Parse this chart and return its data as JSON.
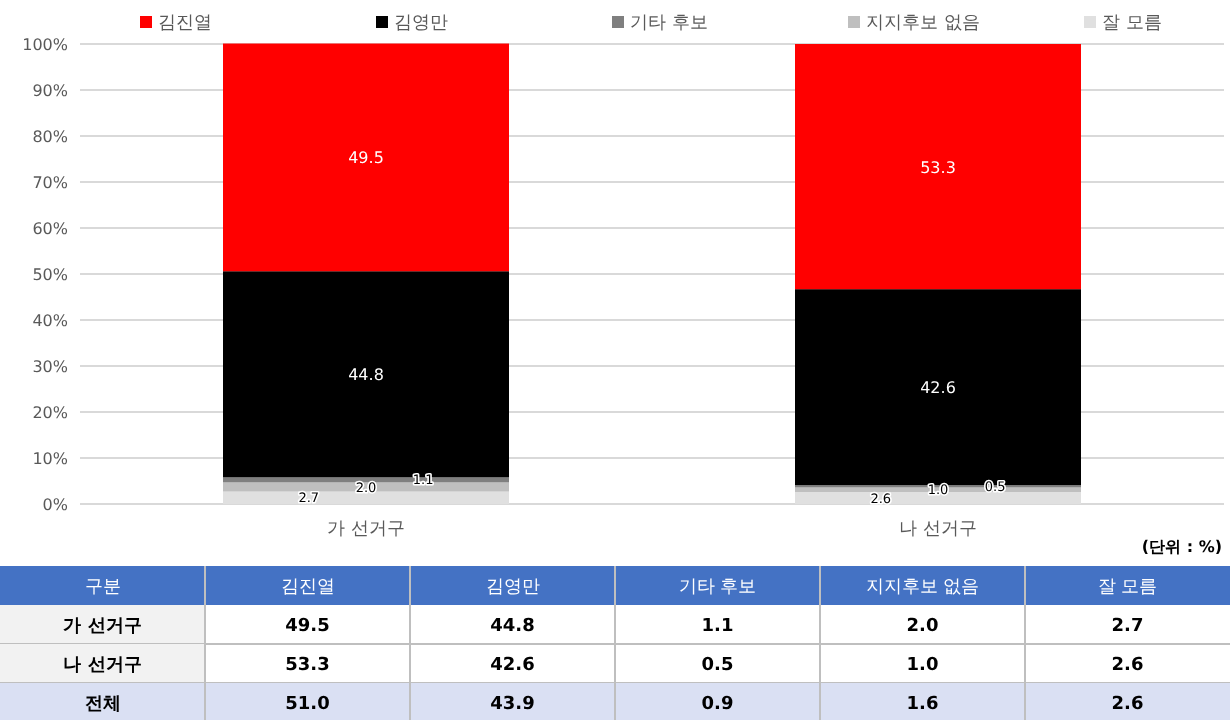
{
  "chart_data": {
    "type": "bar",
    "stacked": true,
    "categories": [
      "가 선거구",
      "나 선거구"
    ],
    "series": [
      {
        "name": "잘 모름",
        "color": "#e0e0e0",
        "values": [
          2.7,
          2.6
        ],
        "value_labels": [
          "2.7",
          "2.6"
        ]
      },
      {
        "name": "지지후보 없음",
        "color": "#bfbfbf",
        "values": [
          2.0,
          1.0
        ],
        "value_labels": [
          "2.0",
          "1.0"
        ]
      },
      {
        "name": "기타 후보",
        "color": "#7f7f7f",
        "values": [
          1.1,
          0.5
        ],
        "value_labels": [
          "1.1",
          "0.5"
        ]
      },
      {
        "name": "김영만",
        "color": "#000000",
        "values": [
          44.8,
          42.6
        ],
        "value_labels": [
          "44.8",
          "42.6"
        ]
      },
      {
        "name": "김진열",
        "color": "#ff0000",
        "values": [
          49.5,
          53.3
        ],
        "value_labels": [
          "49.5",
          "53.3"
        ]
      }
    ],
    "ylim": [
      0,
      100
    ],
    "yticks": [
      {
        "value": 0,
        "label": "0%"
      },
      {
        "value": 10,
        "label": "10%"
      },
      {
        "value": 20,
        "label": "20%"
      },
      {
        "value": 30,
        "label": "30%"
      },
      {
        "value": 40,
        "label": "40%"
      },
      {
        "value": 50,
        "label": "50%"
      },
      {
        "value": 60,
        "label": "60%"
      },
      {
        "value": 70,
        "label": "70%"
      },
      {
        "value": 80,
        "label": "80%"
      },
      {
        "value": 90,
        "label": "90%"
      },
      {
        "value": 100,
        "label": "100%"
      }
    ],
    "grid": "y",
    "legend": "top",
    "annotations": [
      "(단위 : %)",
      "구분",
      "전체",
      "51.0",
      "43.9",
      "0.9",
      "1.6",
      "2.6"
    ]
  }
}
